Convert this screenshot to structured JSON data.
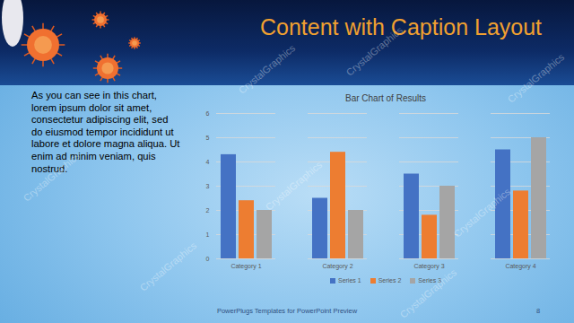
{
  "slide": {
    "title": "Content with Caption Layout",
    "caption": [
      "As you can see in this chart,",
      "lorem ipsum dolor sit amet,",
      "consectetur adipiscing elit, sed",
      "do eiusmod tempor incididunt ut",
      "labore et dolore magna aliqua. Ut",
      "enim ad minim veniam, quis",
      "nostrud."
    ],
    "footer": "PowerPlugs Templates for PowerPoint Preview",
    "page_number": "8",
    "watermark": "CrystalGraphics"
  },
  "chart_data": {
    "type": "bar",
    "title": "Bar Chart of Results",
    "categories": [
      "Category 1",
      "Category 2",
      "Category 3",
      "Category 4"
    ],
    "series": [
      {
        "name": "Series 1",
        "color": "#4472c4",
        "values": [
          4.3,
          2.5,
          3.5,
          4.5
        ]
      },
      {
        "name": "Series 2",
        "color": "#ed7d31",
        "values": [
          2.4,
          4.4,
          1.8,
          2.8
        ]
      },
      {
        "name": "Series 3",
        "color": "#a5a5a5",
        "values": [
          2.0,
          2.0,
          3.0,
          5.0
        ]
      }
    ],
    "ylim": [
      0,
      6
    ],
    "yticks": [
      0,
      1,
      2,
      3,
      4,
      5,
      6
    ],
    "grid": true,
    "legend": "bottom"
  }
}
